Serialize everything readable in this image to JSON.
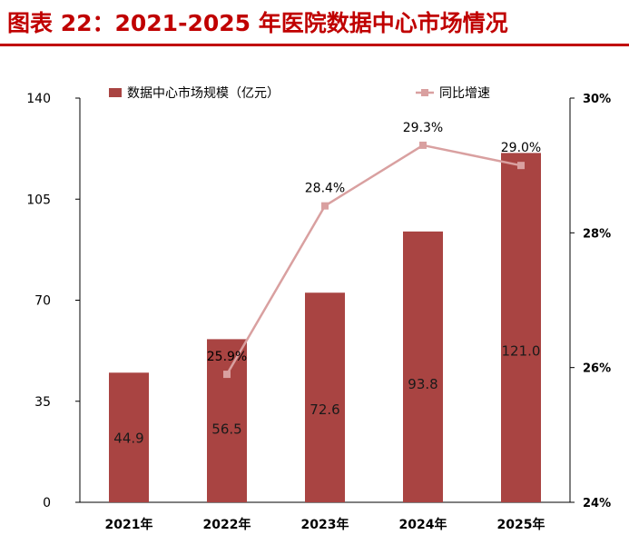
{
  "figure": {
    "title": "图表 22：2021-2025 年医院数据中心市场情况",
    "title_color": "#c00000"
  },
  "chart_data": {
    "type": "bar",
    "categories": [
      "2021年",
      "2022年",
      "2023年",
      "2024年",
      "2025年"
    ],
    "series": [
      {
        "name": "数据中心市场规模（亿元）",
        "type": "bar",
        "axis": "left",
        "color": "#a94442",
        "values": [
          44.9,
          56.5,
          72.6,
          93.8,
          121.0
        ],
        "labels": [
          "44.9",
          "56.5",
          "72.6",
          "93.8",
          "121.0"
        ]
      },
      {
        "name": "同比增速",
        "type": "line",
        "axis": "right",
        "color": "#d9a0a0",
        "values": [
          null,
          25.9,
          28.4,
          29.3,
          29.0
        ],
        "labels": [
          "",
          "25.9%",
          "28.4%",
          "29.3%",
          "29.0%"
        ]
      }
    ],
    "y_left": {
      "min": 0,
      "max": 140,
      "ticks": [
        0,
        35,
        70,
        105,
        140
      ]
    },
    "y_right": {
      "min": 24,
      "max": 30,
      "ticks": [
        24,
        26,
        28,
        30
      ],
      "tick_labels": [
        "24%",
        "26%",
        "28%",
        "30%"
      ]
    },
    "legend": "top",
    "grid": false
  }
}
